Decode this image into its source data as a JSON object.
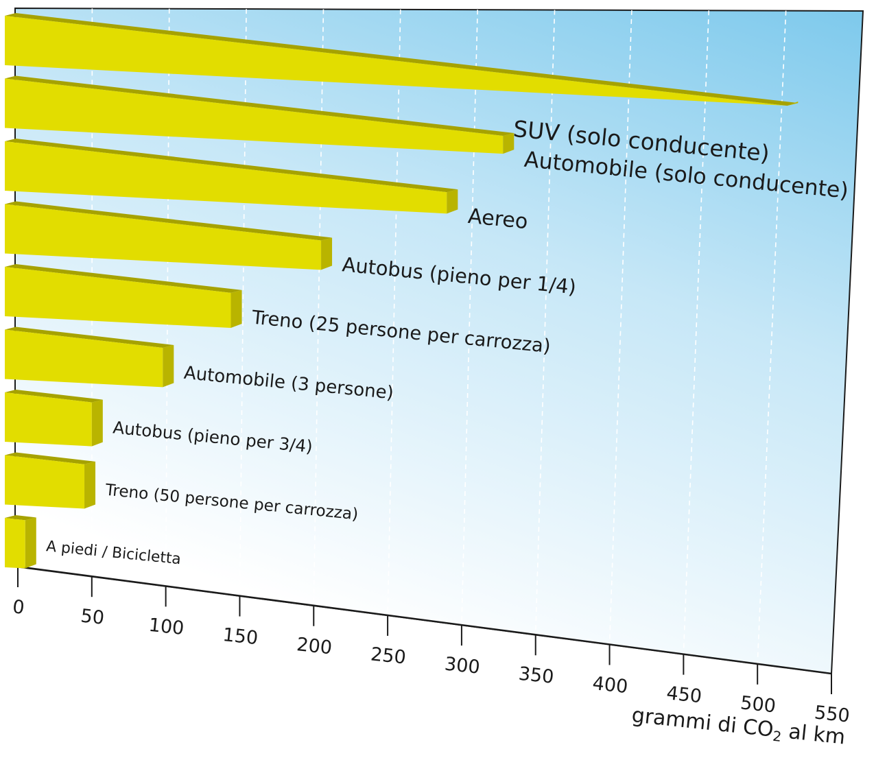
{
  "chart_data": {
    "type": "bar",
    "orientation": "horizontal",
    "title": "",
    "xlabel": "grammi di CO",
    "xlabel_subscript": "2",
    "xlabel_suffix": " al km",
    "ylabel": "",
    "xlim": [
      0,
      550
    ],
    "ticks": [
      0,
      50,
      100,
      150,
      200,
      250,
      300,
      350,
      400,
      450,
      500,
      550
    ],
    "tick_labels": [
      "0",
      "50",
      "100",
      "150",
      "200",
      "250",
      "300",
      "350",
      "400",
      "450",
      "500",
      "550"
    ],
    "grid": true,
    "legend": "none",
    "categories": [
      "SUV (solo conducente)",
      "Automobile (solo conducente)",
      "Aereo",
      "Autobus (pieno per 1/4)",
      "Treno (25 persone per carrozza)",
      "Automobile (3 persone)",
      "Autobus (pieno per 3/4)",
      "Treno (50 persone per carrozza)",
      "A piedi / Bicicletta"
    ],
    "values": [
      520,
      328,
      290,
      205,
      144,
      98,
      50,
      45,
      5
    ]
  },
  "colors": {
    "bar_front": "#e2dd00",
    "bar_side": "#b9b400",
    "bar_top": "#a6a200",
    "background_top": "#7dc9ec",
    "background_bottom": "#ffffff",
    "axis": "#1a1a1a",
    "grid": "#ffffff"
  }
}
